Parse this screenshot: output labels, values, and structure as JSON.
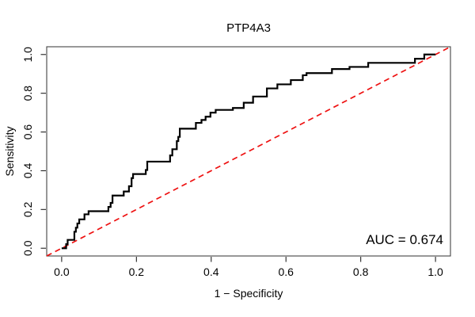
{
  "figure": {
    "title": "PTP4A3",
    "x_axis_label": "1 − Specificity",
    "y_axis_label": "Sensitivity",
    "auc_label": "AUC = 0.674"
  },
  "colors": {
    "curve": "#000000",
    "diagonal": "#ee1111",
    "box": "#444444",
    "tick": "#222222",
    "background": "#ffffff"
  },
  "chart_data": {
    "type": "line",
    "title": "PTP4A3",
    "xlabel": "1 − Specificity",
    "ylabel": "Sensitivity",
    "xlim": [
      -0.04,
      1.04
    ],
    "ylim": [
      -0.04,
      1.04
    ],
    "grid": false,
    "x_ticks": [
      0.0,
      0.2,
      0.4,
      0.6,
      0.8,
      1.0
    ],
    "y_ticks": [
      0.0,
      0.2,
      0.4,
      0.6,
      0.8,
      1.0
    ],
    "x_tick_labels": [
      "0.0",
      "0.2",
      "0.4",
      "0.6",
      "0.8",
      "1.0"
    ],
    "y_tick_labels": [
      "0.0",
      "0.2",
      "0.4",
      "0.6",
      "0.8",
      "1.0"
    ],
    "auc": 0.674,
    "annotations": [
      {
        "text": "AUC = 0.674",
        "x": 0.98,
        "y": 0.04,
        "align": "right"
      }
    ],
    "series": [
      {
        "name": "ROC curve (PTP4A3)",
        "style": "step",
        "color": "#000000",
        "line_width": 2.2,
        "points": [
          [
            0.0,
            0.0
          ],
          [
            0.012,
            0.0
          ],
          [
            0.012,
            0.021
          ],
          [
            0.016,
            0.021
          ],
          [
            0.016,
            0.043
          ],
          [
            0.034,
            0.043
          ],
          [
            0.034,
            0.085
          ],
          [
            0.038,
            0.085
          ],
          [
            0.038,
            0.106
          ],
          [
            0.042,
            0.106
          ],
          [
            0.042,
            0.128
          ],
          [
            0.047,
            0.128
          ],
          [
            0.047,
            0.149
          ],
          [
            0.061,
            0.149
          ],
          [
            0.061,
            0.175
          ],
          [
            0.072,
            0.175
          ],
          [
            0.072,
            0.191
          ],
          [
            0.125,
            0.191
          ],
          [
            0.125,
            0.213
          ],
          [
            0.131,
            0.213
          ],
          [
            0.131,
            0.234
          ],
          [
            0.136,
            0.234
          ],
          [
            0.136,
            0.272
          ],
          [
            0.166,
            0.272
          ],
          [
            0.166,
            0.293
          ],
          [
            0.18,
            0.293
          ],
          [
            0.18,
            0.32
          ],
          [
            0.187,
            0.32
          ],
          [
            0.187,
            0.362
          ],
          [
            0.191,
            0.362
          ],
          [
            0.191,
            0.383
          ],
          [
            0.225,
            0.383
          ],
          [
            0.225,
            0.404
          ],
          [
            0.229,
            0.404
          ],
          [
            0.229,
            0.447
          ],
          [
            0.29,
            0.447
          ],
          [
            0.29,
            0.479
          ],
          [
            0.296,
            0.479
          ],
          [
            0.296,
            0.511
          ],
          [
            0.308,
            0.511
          ],
          [
            0.308,
            0.553
          ],
          [
            0.312,
            0.553
          ],
          [
            0.312,
            0.575
          ],
          [
            0.316,
            0.575
          ],
          [
            0.316,
            0.617
          ],
          [
            0.359,
            0.617
          ],
          [
            0.359,
            0.647
          ],
          [
            0.374,
            0.647
          ],
          [
            0.374,
            0.662
          ],
          [
            0.385,
            0.662
          ],
          [
            0.385,
            0.679
          ],
          [
            0.398,
            0.679
          ],
          [
            0.398,
            0.7
          ],
          [
            0.412,
            0.7
          ],
          [
            0.412,
            0.714
          ],
          [
            0.458,
            0.714
          ],
          [
            0.458,
            0.724
          ],
          [
            0.487,
            0.724
          ],
          [
            0.487,
            0.751
          ],
          [
            0.512,
            0.751
          ],
          [
            0.512,
            0.783
          ],
          [
            0.549,
            0.783
          ],
          [
            0.549,
            0.825
          ],
          [
            0.577,
            0.825
          ],
          [
            0.577,
            0.846
          ],
          [
            0.613,
            0.846
          ],
          [
            0.613,
            0.868
          ],
          [
            0.645,
            0.868
          ],
          [
            0.645,
            0.893
          ],
          [
            0.655,
            0.893
          ],
          [
            0.655,
            0.904
          ],
          [
            0.723,
            0.904
          ],
          [
            0.723,
            0.925
          ],
          [
            0.77,
            0.925
          ],
          [
            0.77,
            0.936
          ],
          [
            0.82,
            0.936
          ],
          [
            0.82,
            0.957
          ],
          [
            0.945,
            0.957
          ],
          [
            0.945,
            0.978
          ],
          [
            0.97,
            0.978
          ],
          [
            0.97,
            1.0
          ],
          [
            1.0,
            1.0
          ]
        ]
      },
      {
        "name": "chance diagonal",
        "style": "dashed",
        "color": "#ee1111",
        "line_width": 1.7,
        "points": [
          [
            -0.04,
            -0.04
          ],
          [
            1.04,
            1.04
          ]
        ]
      }
    ],
    "legend_position": "none"
  }
}
